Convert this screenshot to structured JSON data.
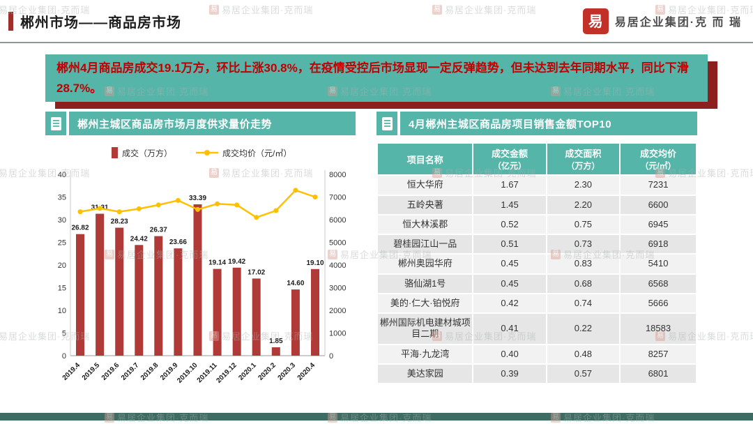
{
  "header": {
    "title": "郴州市场——商品房市场",
    "logo_text": "易居企业集团·克 而 瑞",
    "seal_char": "易"
  },
  "banner": {
    "lines": [
      "郴州4月商品房成交19.1万方，环比上涨30.8%，在疫情受控后市场显现一定反弹趋势，但未达到去年同期水平，同比下滑",
      "28.7%。"
    ]
  },
  "left_section": {
    "title": "郴州主城区商品房市场月度供求量价走势"
  },
  "right_section": {
    "title": "4月郴州主城区商品房项目销售金额TOP10",
    "table": {
      "headers": [
        {
          "label": "项目名称",
          "unit": ""
        },
        {
          "label": "成交金额",
          "unit": "（亿元）"
        },
        {
          "label": "成交面积",
          "unit": "（万方）"
        },
        {
          "label": "成交均价",
          "unit": "（元/㎡）"
        }
      ],
      "rows": [
        [
          "恒大华府",
          "1.67",
          "2.30",
          "7231"
        ],
        [
          "五岭央著",
          "1.45",
          "2.20",
          "6600"
        ],
        [
          "恒大林溪郡",
          "0.52",
          "0.75",
          "6945"
        ],
        [
          "碧桂园江山一品",
          "0.51",
          "0.73",
          "6918"
        ],
        [
          "郴州奥园华府",
          "0.45",
          "0.83",
          "5410"
        ],
        [
          "骆仙湖1号",
          "0.45",
          "0.68",
          "6568"
        ],
        [
          "美的·仁大·铂悦府",
          "0.42",
          "0.74",
          "5666"
        ],
        [
          "郴州国际机电建材城项目二期",
          "0.41",
          "0.22",
          "18583"
        ],
        [
          "平海·九龙湾",
          "0.40",
          "0.48",
          "8257"
        ],
        [
          "美达家园",
          "0.39",
          "0.57",
          "6801"
        ]
      ]
    }
  },
  "chart_data": [
    {
      "type": "bar",
      "title": "郴州主城区商品房市场月度供求量价走势",
      "categories": [
        "2019.4",
        "2019.5",
        "2019.6",
        "2019.7",
        "2019.8",
        "2019.9",
        "2019.10",
        "2019.11",
        "2019.12",
        "2020.1",
        "2020.2",
        "2020.3",
        "2020.4"
      ],
      "series": [
        {
          "name": "成交（万方）",
          "type": "bar",
          "axis": "left",
          "color": "#b03a37",
          "values": [
            26.82,
            31.31,
            28.23,
            24.42,
            26.37,
            23.66,
            33.39,
            19.14,
            19.42,
            17.02,
            1.85,
            14.6,
            19.1
          ]
        },
        {
          "name": "成交均价（元/㎡）",
          "type": "line",
          "axis": "right",
          "color": "#ffc000",
          "values": [
            6350,
            6500,
            6350,
            6480,
            6650,
            6850,
            6450,
            6700,
            6650,
            6100,
            6400,
            7300,
            7000
          ]
        }
      ],
      "left_axis": {
        "min": 0,
        "max": 40,
        "step": 5
      },
      "right_axis": {
        "min": 0,
        "max": 8000,
        "step": 1000
      },
      "grid": false,
      "legend_position": "top"
    },
    {
      "type": "table",
      "title": "4月郴州主城区商品房项目销售金额TOP10",
      "columns": [
        "项目名称",
        "成交金额（亿元）",
        "成交面积（万方）",
        "成交均价（元/㎡）"
      ],
      "rows": [
        [
          "恒大华府",
          1.67,
          2.3,
          7231
        ],
        [
          "五岭央著",
          1.45,
          2.2,
          6600
        ],
        [
          "恒大林溪郡",
          0.52,
          0.75,
          6945
        ],
        [
          "碧桂园江山一品",
          0.51,
          0.73,
          6918
        ],
        [
          "郴州奥园华府",
          0.45,
          0.83,
          5410
        ],
        [
          "骆仙湖1号",
          0.45,
          0.68,
          6568
        ],
        [
          "美的·仁大·铂悦府",
          0.42,
          0.74,
          5666
        ],
        [
          "郴州国际机电建材城项目二期",
          0.41,
          0.22,
          18583
        ],
        [
          "平海·九龙湾",
          0.4,
          0.48,
          8257
        ],
        [
          "美达家园",
          0.39,
          0.57,
          6801
        ]
      ]
    }
  ],
  "watermark": {
    "text": "易居企业集团·克而瑞",
    "seal_char": "易"
  },
  "colors": {
    "teal": "#56b5a9",
    "banner_text_red": "#c00000",
    "banner_shadow_red": "#8e1f1f",
    "accent_red": "#9e2f28",
    "bar_red": "#b03a37",
    "line_gold": "#ffc000",
    "bottom_bar_teal": "#3e6b62"
  }
}
